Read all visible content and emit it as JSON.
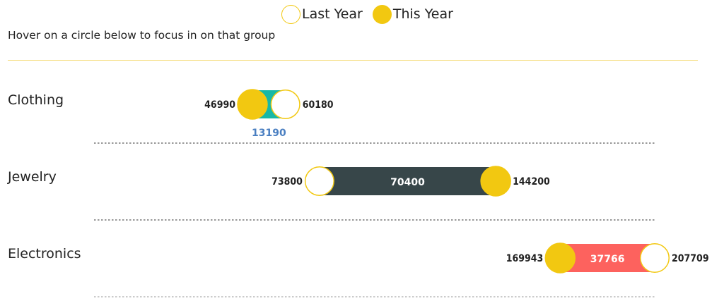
{
  "legend": {
    "last_year": "Last Year",
    "this_year": "This Year"
  },
  "hint": "Hover on a circle below to focus in on that group",
  "colors": {
    "accent": "#f2c811",
    "increase": "#17b8a6",
    "gain_large": "#374649",
    "decrease": "#fd625e",
    "separator": "#777777",
    "diff_text_outside": "#4a7fc1"
  },
  "chart_data": {
    "type": "dumbbell",
    "series": [
      {
        "name": "Last Year"
      },
      {
        "name": "This Year"
      }
    ],
    "categories": [
      "Clothing",
      "Jewelry",
      "Electronics"
    ],
    "rows": [
      {
        "category": "Clothing",
        "last_year": 60180,
        "this_year": 46990,
        "difference": 13190
      },
      {
        "category": "Jewelry",
        "last_year": 73800,
        "this_year": 144200,
        "difference": 70400
      },
      {
        "category": "Electronics",
        "last_year": 207709,
        "this_year": 169943,
        "difference": 37766
      }
    ]
  }
}
